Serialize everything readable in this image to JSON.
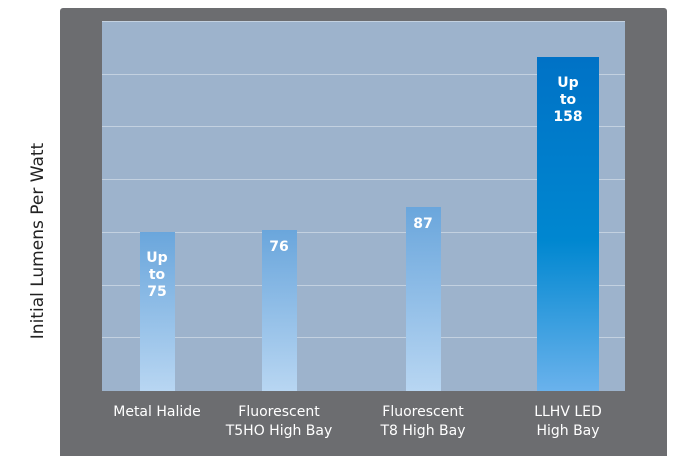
{
  "chart_data": {
    "type": "bar",
    "ylabel": "Initial Lumens Per Watt",
    "xlabel": "",
    "ylim": [
      0,
      175
    ],
    "grid": true,
    "categories": [
      [
        "Metal Halide"
      ],
      [
        "Fluorescent",
        "T5HO High Bay"
      ],
      [
        "Fluorescent",
        "T8 High Bay"
      ],
      [
        "LLHV LED",
        "High Bay"
      ]
    ],
    "values": [
      75,
      76,
      87,
      158
    ],
    "data_labels": [
      [
        "Up",
        "to",
        "75"
      ],
      [
        "76"
      ],
      [
        "87"
      ],
      [
        "Up",
        "to",
        "158"
      ]
    ],
    "colors": {
      "panel": "#6c6d70",
      "plot_background": "#9db3cc",
      "gridline": "#c3d1e0",
      "bar_top": "#6aa6dc",
      "bar_bottom": "#b8d6f2",
      "highlight_top": "#0072c6",
      "highlight_bottom": "#6ab2ec"
    }
  }
}
